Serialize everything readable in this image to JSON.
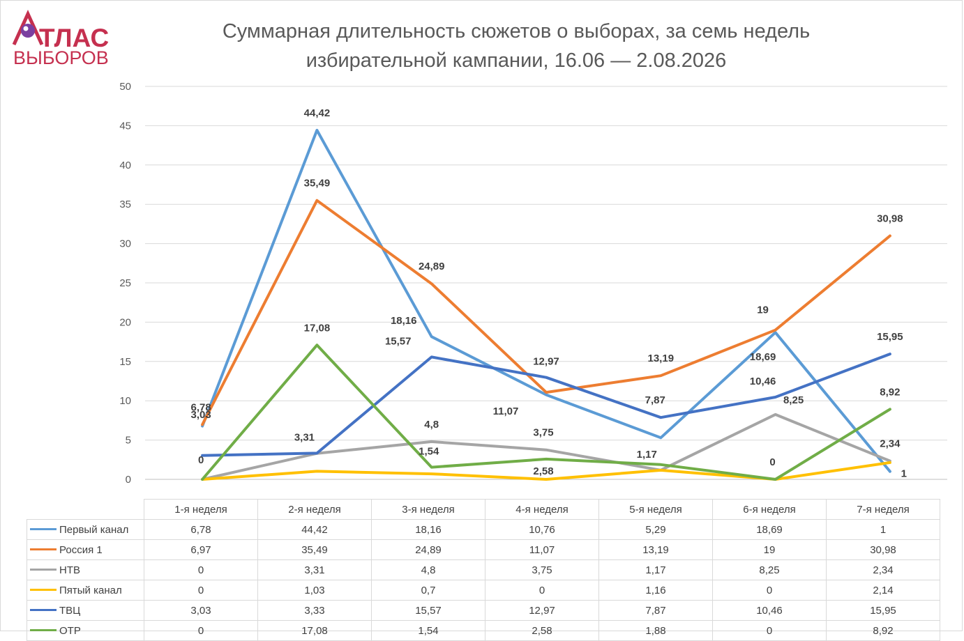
{
  "logo": {
    "line1": "ТЛАС",
    "line2": "ВЫБОРОВ"
  },
  "title_line1": "Суммарная длительность сюжетов о выборах, за семь недель",
  "title_line2": "избирательной кампании, 16.06 — 2.08.2026",
  "chart_data": {
    "type": "line",
    "title": "Суммарная длительность сюжетов о выборах, за семь недель избирательной кампании, 16.06 — 2.08.2026",
    "categories": [
      "1-я неделя",
      "2-я неделя",
      "3-я неделя",
      "4-я неделя",
      "5-я неделя",
      "6-я неделя",
      "7-я неделя"
    ],
    "ylim": [
      0,
      50
    ],
    "yticks": [
      0,
      5,
      10,
      15,
      20,
      25,
      30,
      35,
      40,
      45,
      50
    ],
    "grid": true,
    "legend": "data-table",
    "series": [
      {
        "name": "Первый канал",
        "color": "#5b9bd5",
        "values": [
          6.78,
          44.42,
          18.16,
          10.76,
          5.29,
          18.69,
          1
        ],
        "value_labels": [
          "6,78",
          "44,42",
          "18,16",
          "10,76",
          "5,29",
          "18,69",
          "1"
        ]
      },
      {
        "name": "Россия 1",
        "color": "#ed7d31",
        "values": [
          6.97,
          35.49,
          24.89,
          11.07,
          13.19,
          19,
          30.98
        ],
        "value_labels": [
          "6,97",
          "35,49",
          "24,89",
          "11,07",
          "13,19",
          "19",
          "30,98"
        ]
      },
      {
        "name": "НТВ",
        "color": "#a5a5a5",
        "values": [
          0,
          3.31,
          4.8,
          3.75,
          1.17,
          8.25,
          2.34
        ],
        "value_labels": [
          "0",
          "3,31",
          "4,8",
          "3,75",
          "1,17",
          "8,25",
          "2,34"
        ]
      },
      {
        "name": "Пятый канал",
        "color": "#ffc000",
        "values": [
          0,
          1.03,
          0.7,
          0,
          1.16,
          0,
          2.14
        ],
        "value_labels": [
          "0",
          "1,03",
          "0,7",
          "0",
          "1,16",
          "0",
          "2,14"
        ]
      },
      {
        "name": "ТВЦ",
        "color": "#4472c4",
        "values": [
          3.03,
          3.33,
          15.57,
          12.97,
          7.87,
          10.46,
          15.95
        ],
        "value_labels": [
          "3,03",
          "3,33",
          "15,57",
          "12,97",
          "7,87",
          "10,46",
          "15,95"
        ]
      },
      {
        "name": "ОТР",
        "color": "#70ad47",
        "values": [
          0,
          17.08,
          1.54,
          2.58,
          1.88,
          0,
          8.92
        ],
        "value_labels": [
          "0",
          "17,08",
          "1,54",
          "2,58",
          "1,88",
          "0",
          "8,92"
        ]
      }
    ],
    "annotations": [
      {
        "text": "6,78",
        "category": 0,
        "value": 6.78
      },
      {
        "text": "3,03",
        "category": 0,
        "value": 3.03
      },
      {
        "text": "0",
        "category": 0,
        "value": 0
      },
      {
        "text": "44,42",
        "category": 1,
        "value": 44.42
      },
      {
        "text": "35,49",
        "category": 1,
        "value": 35.49
      },
      {
        "text": "17,08",
        "category": 1,
        "value": 17.08
      },
      {
        "text": "3,31",
        "category": 1,
        "value": 3.31
      },
      {
        "text": "24,89",
        "category": 2,
        "value": 24.89
      },
      {
        "text": "18,16",
        "category": 2,
        "value": 18.16
      },
      {
        "text": "15,57",
        "category": 2,
        "value": 15.57
      },
      {
        "text": "4,8",
        "category": 2,
        "value": 4.8
      },
      {
        "text": "1,54",
        "category": 2,
        "value": 1.54
      },
      {
        "text": "12,97",
        "category": 3,
        "value": 12.97
      },
      {
        "text": "11,07",
        "category": 3,
        "value": 11.07
      },
      {
        "text": "3,75",
        "category": 3,
        "value": 3.75
      },
      {
        "text": "2,58",
        "category": 3,
        "value": 2.58
      },
      {
        "text": "13,19",
        "category": 4,
        "value": 13.19
      },
      {
        "text": "7,87",
        "category": 4,
        "value": 7.87
      },
      {
        "text": "1,17",
        "category": 4,
        "value": 1.17
      },
      {
        "text": "19",
        "category": 5,
        "value": 19
      },
      {
        "text": "18,69",
        "category": 5,
        "value": 18.69
      },
      {
        "text": "10,46",
        "category": 5,
        "value": 10.46
      },
      {
        "text": "8,25",
        "category": 5,
        "value": 8.25
      },
      {
        "text": "0",
        "category": 5,
        "value": 0
      },
      {
        "text": "30,98",
        "category": 6,
        "value": 30.98
      },
      {
        "text": "15,95",
        "category": 6,
        "value": 15.95
      },
      {
        "text": "8,92",
        "category": 6,
        "value": 8.92
      },
      {
        "text": "2,34",
        "category": 6,
        "value": 2.34
      },
      {
        "text": "1",
        "category": 6,
        "value": 1
      }
    ]
  }
}
